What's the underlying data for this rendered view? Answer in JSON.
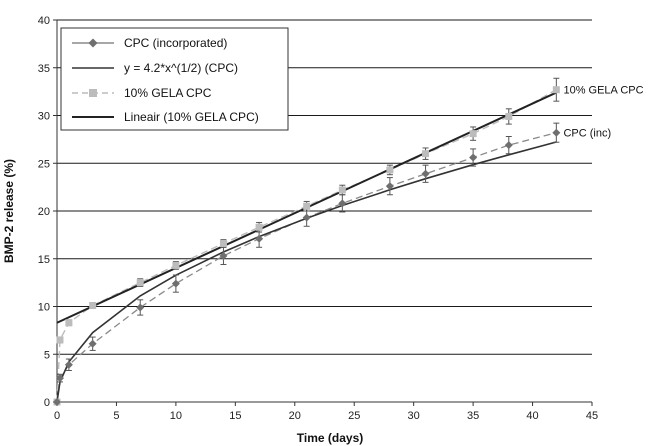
{
  "chart_data": {
    "type": "line",
    "title": "",
    "xlabel": "Time (days)",
    "ylabel": "BMP-2 release (%)",
    "xlim": [
      0,
      45
    ],
    "ylim": [
      0,
      40
    ],
    "x_ticks": [
      0,
      5,
      10,
      15,
      20,
      25,
      30,
      35,
      40,
      45
    ],
    "y_ticks": [
      0,
      5,
      10,
      15,
      20,
      25,
      30,
      35,
      40
    ],
    "grid": "horizontal",
    "legend_position": "top-left",
    "series": [
      {
        "name": "CPC (incorporated)",
        "kind": "data-dashed-diamond",
        "color": "#8a8a8a",
        "x": [
          0,
          0.25,
          1,
          3,
          7,
          10,
          14,
          17,
          21,
          24,
          28,
          31,
          35,
          38,
          42
        ],
        "y": [
          0,
          2.5,
          3.9,
          6.1,
          9.9,
          12.4,
          15.3,
          17.1,
          19.3,
          20.8,
          22.6,
          23.9,
          25.6,
          26.9,
          28.2
        ],
        "error": [
          0.3,
          0.4,
          0.6,
          0.7,
          0.8,
          0.9,
          0.9,
          0.9,
          0.9,
          0.9,
          0.9,
          0.9,
          0.9,
          0.9,
          1.0
        ]
      },
      {
        "name": "y = 4.2*x^(1/2) (CPC)",
        "kind": "fit-sqrt",
        "color": "#333333",
        "x": [
          0,
          0.25,
          1,
          3,
          7,
          10,
          14,
          17,
          21,
          24,
          28,
          31,
          35,
          38,
          42
        ],
        "y": [
          0,
          2.1,
          4.2,
          7.27,
          11.11,
          13.28,
          15.71,
          17.32,
          19.25,
          20.58,
          22.22,
          23.38,
          24.85,
          25.89,
          27.22
        ]
      },
      {
        "name": "10% GELA CPC",
        "kind": "data-dashed-square",
        "color": "#bcbcbc",
        "x": [
          0,
          0.25,
          1,
          3,
          7,
          10,
          14,
          17,
          21,
          24,
          28,
          31,
          35,
          38,
          42
        ],
        "y": [
          0,
          6.5,
          8.3,
          10.1,
          12.5,
          14.3,
          16.6,
          18.3,
          20.5,
          22.2,
          24.3,
          26.0,
          28.1,
          29.9,
          32.7
        ],
        "error": [
          0.2,
          0.3,
          0.3,
          0.3,
          0.4,
          0.4,
          0.4,
          0.5,
          0.5,
          0.5,
          0.5,
          0.6,
          0.7,
          0.8,
          1.2
        ]
      },
      {
        "name": "Lineair (10% GELA CPC)",
        "kind": "fit-linear",
        "color": "#222222",
        "x": [
          0,
          42
        ],
        "y": [
          8.3,
          32.4
        ]
      }
    ],
    "annotations": [
      {
        "text": "10% GELA CPC",
        "x": 42.6,
        "y": 32.7
      },
      {
        "text": "CPC (inc)",
        "x": 42.6,
        "y": 28.2
      }
    ]
  }
}
